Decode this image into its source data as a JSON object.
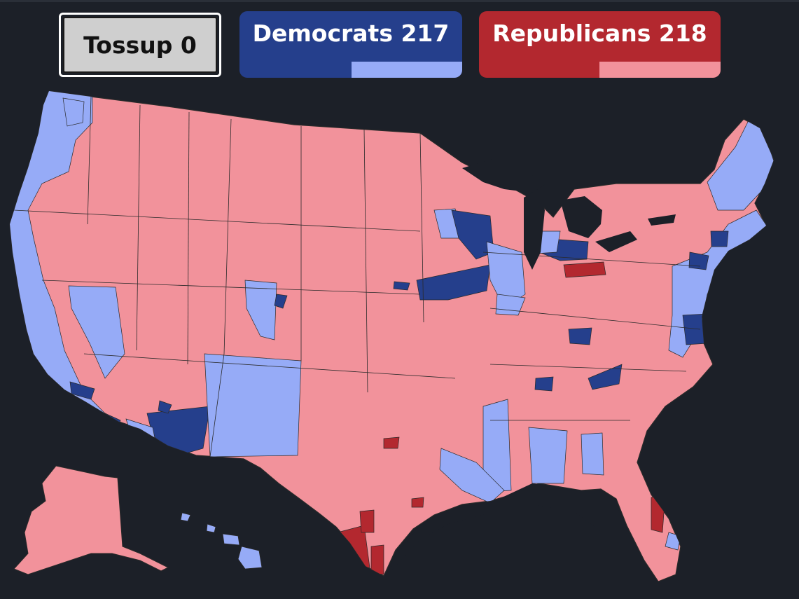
{
  "tossup": {
    "label": "Tossup 0",
    "count": 0
  },
  "democrats": {
    "label": "Democrats 217",
    "seats": 217,
    "color": "#253f8c",
    "lean_color": "#96abf7"
  },
  "republicans": {
    "label": "Republicans 218",
    "seats": 218,
    "color": "#b3282f",
    "lean_color": "#f2929b"
  },
  "map": {
    "background": "#1c2028",
    "border_color": "#2a2a2a",
    "legend_states": [
      "tossup",
      "safe-democrat",
      "lean-democrat",
      "safe-republican",
      "lean-republican"
    ]
  }
}
